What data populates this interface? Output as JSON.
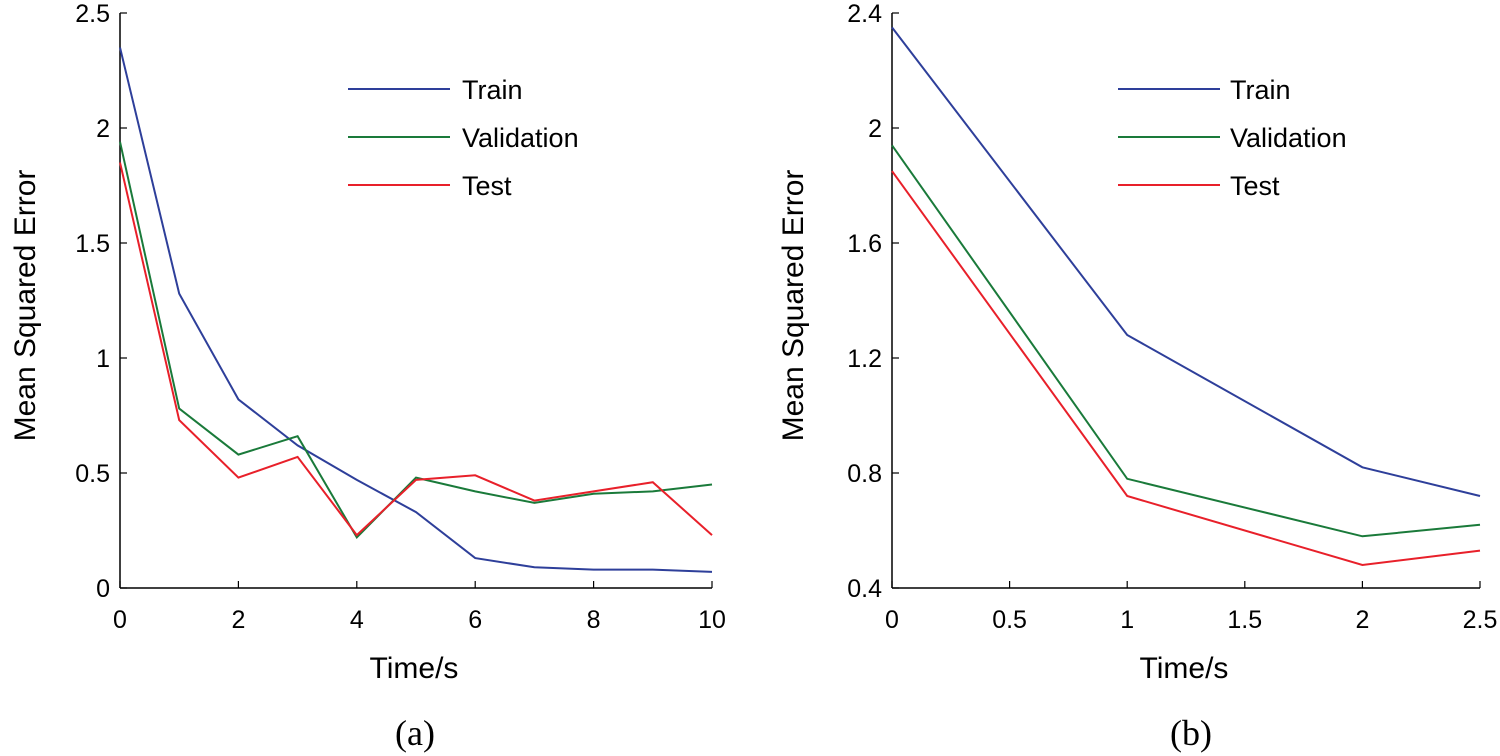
{
  "chart_data": [
    {
      "type": "line",
      "panel_label": "(a)",
      "title": "",
      "xlabel": "Time/s",
      "ylabel": "Mean Squared Error",
      "xlim": [
        0,
        10
      ],
      "ylim": [
        0,
        2.5
      ],
      "xticks": [
        0,
        2,
        4,
        6,
        8,
        10
      ],
      "xtick_labels": [
        "0",
        "2",
        "4",
        "6",
        "8",
        "10"
      ],
      "yticks": [
        0,
        0.5,
        1,
        1.5,
        2,
        2.5
      ],
      "ytick_labels": [
        "0",
        "0.5",
        "1",
        "1.5",
        "2",
        "2.5"
      ],
      "grid": false,
      "legend_position": "top-right",
      "x": [
        0,
        1,
        2,
        3,
        4,
        5,
        6,
        7,
        8,
        9,
        10
      ],
      "series": [
        {
          "name": "Train",
          "color": "#2e3f9a",
          "values": [
            2.35,
            1.28,
            0.82,
            0.62,
            0.47,
            0.33,
            0.13,
            0.09,
            0.08,
            0.08,
            0.07
          ]
        },
        {
          "name": "Validation",
          "color": "#1a7a3a",
          "values": [
            1.94,
            0.78,
            0.58,
            0.66,
            0.22,
            0.48,
            0.42,
            0.37,
            0.41,
            0.42,
            0.45
          ]
        },
        {
          "name": "Test",
          "color": "#e8202a",
          "values": [
            1.85,
            0.73,
            0.48,
            0.57,
            0.23,
            0.47,
            0.49,
            0.38,
            0.42,
            0.46,
            0.23
          ]
        }
      ]
    },
    {
      "type": "line",
      "panel_label": "(b)",
      "title": "",
      "xlabel": "Time/s",
      "ylabel": "Mean Squared Error",
      "xlim": [
        0,
        2.5
      ],
      "ylim": [
        0.4,
        2.4
      ],
      "xticks": [
        0,
        0.5,
        1,
        1.5,
        2,
        2.5
      ],
      "xtick_labels": [
        "0",
        "0.5",
        "1",
        "1.5",
        "2",
        "2.5"
      ],
      "yticks": [
        0.4,
        0.8,
        1.2,
        1.6,
        2.0,
        2.4
      ],
      "ytick_labels": [
        "0.4",
        "0.8",
        "1.2",
        "1.6",
        "2",
        "2.4"
      ],
      "grid": false,
      "legend_position": "top-right",
      "x": [
        0,
        1,
        2,
        2.5
      ],
      "series": [
        {
          "name": "Train",
          "color": "#2e3f9a",
          "values": [
            2.35,
            1.28,
            0.82,
            0.72
          ]
        },
        {
          "name": "Validation",
          "color": "#1a7a3a",
          "values": [
            1.94,
            0.78,
            0.58,
            0.62
          ]
        },
        {
          "name": "Test",
          "color": "#e8202a",
          "values": [
            1.85,
            0.72,
            0.48,
            0.53
          ]
        }
      ]
    }
  ]
}
